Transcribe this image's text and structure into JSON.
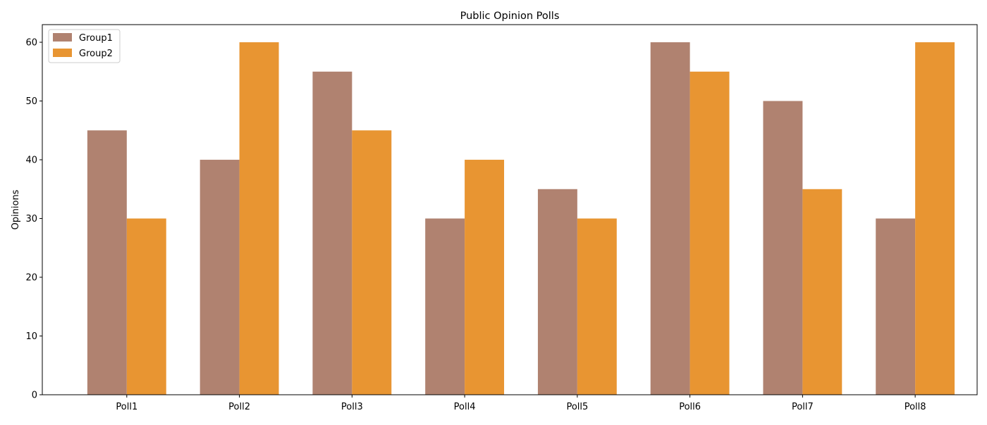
{
  "chart_data": {
    "type": "bar",
    "title": "Public Opinion Polls",
    "xlabel": "",
    "ylabel": "Opinions",
    "categories": [
      "Poll1",
      "Poll2",
      "Poll3",
      "Poll4",
      "Poll5",
      "Poll6",
      "Poll7",
      "Poll8"
    ],
    "series": [
      {
        "name": "Group1",
        "color": "#b08270",
        "values": [
          45,
          40,
          55,
          30,
          35,
          60,
          50,
          30
        ]
      },
      {
        "name": "Group2",
        "color": "#e89532",
        "values": [
          30,
          60,
          45,
          40,
          30,
          55,
          35,
          60
        ]
      }
    ],
    "ylim": [
      0,
      63
    ],
    "yticks": [
      0,
      10,
      20,
      30,
      40,
      50,
      60
    ],
    "grid": false,
    "legend_position": "top-left"
  }
}
